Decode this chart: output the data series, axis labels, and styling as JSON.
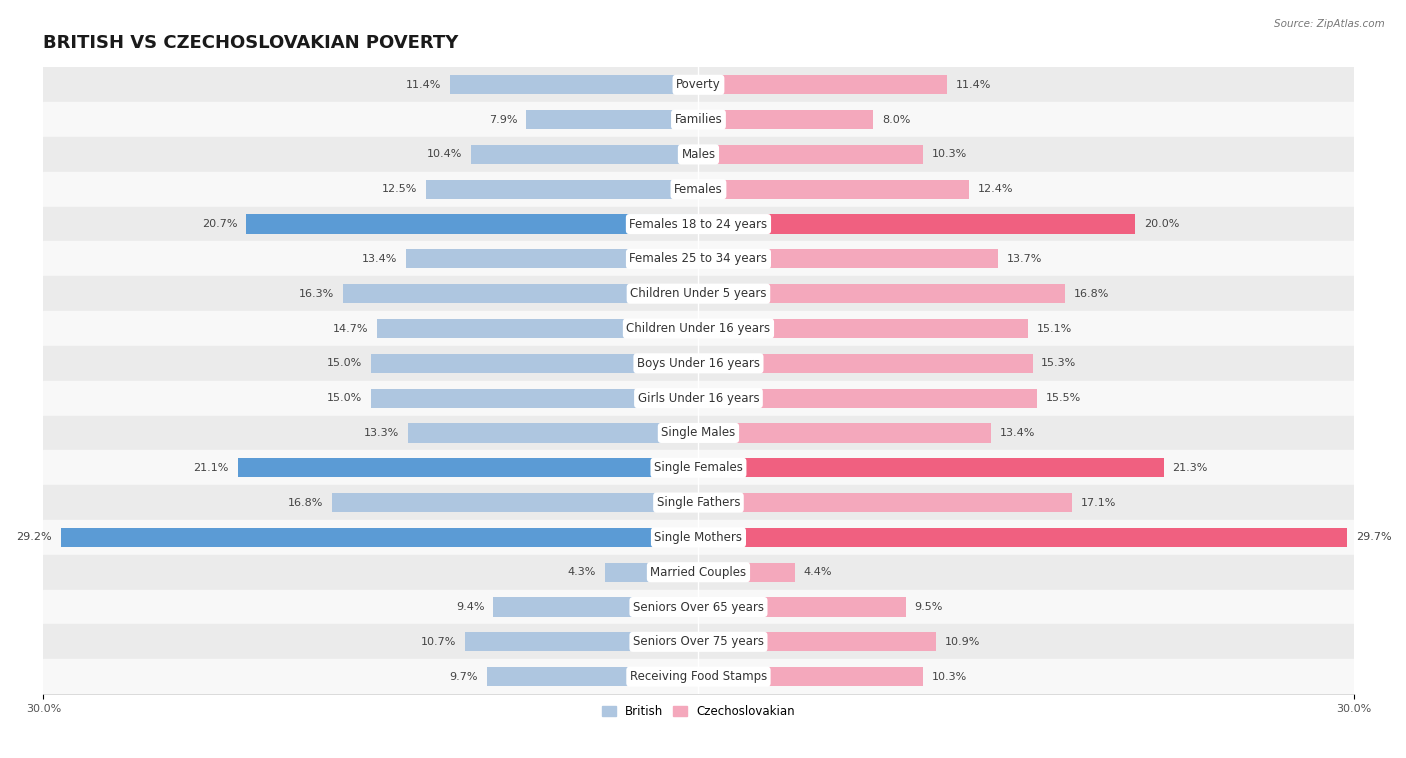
{
  "title": "BRITISH VS CZECHOSLOVAKIAN POVERTY",
  "source": "Source: ZipAtlas.com",
  "categories": [
    "Poverty",
    "Families",
    "Males",
    "Females",
    "Females 18 to 24 years",
    "Females 25 to 34 years",
    "Children Under 5 years",
    "Children Under 16 years",
    "Boys Under 16 years",
    "Girls Under 16 years",
    "Single Males",
    "Single Females",
    "Single Fathers",
    "Single Mothers",
    "Married Couples",
    "Seniors Over 65 years",
    "Seniors Over 75 years",
    "Receiving Food Stamps"
  ],
  "british": [
    11.4,
    7.9,
    10.4,
    12.5,
    20.7,
    13.4,
    16.3,
    14.7,
    15.0,
    15.0,
    13.3,
    21.1,
    16.8,
    29.2,
    4.3,
    9.4,
    10.7,
    9.7
  ],
  "czechoslovakian": [
    11.4,
    8.0,
    10.3,
    12.4,
    20.0,
    13.7,
    16.8,
    15.1,
    15.3,
    15.5,
    13.4,
    21.3,
    17.1,
    29.7,
    4.4,
    9.5,
    10.9,
    10.3
  ],
  "british_color": "#aec6e0",
  "czechoslovakian_color": "#f4a8bc",
  "highlight_british_color": "#5b9bd5",
  "highlight_czechoslovakian_color": "#f06080",
  "highlight_rows": [
    4,
    11,
    13
  ],
  "bar_height": 0.55,
  "xlim": 30,
  "background_color": "#ffffff",
  "row_even_color": "#ebebeb",
  "row_odd_color": "#f8f8f8",
  "title_fontsize": 13,
  "label_fontsize": 8.5,
  "value_fontsize": 8,
  "legend_labels": [
    "British",
    "Czechoslovakian"
  ]
}
